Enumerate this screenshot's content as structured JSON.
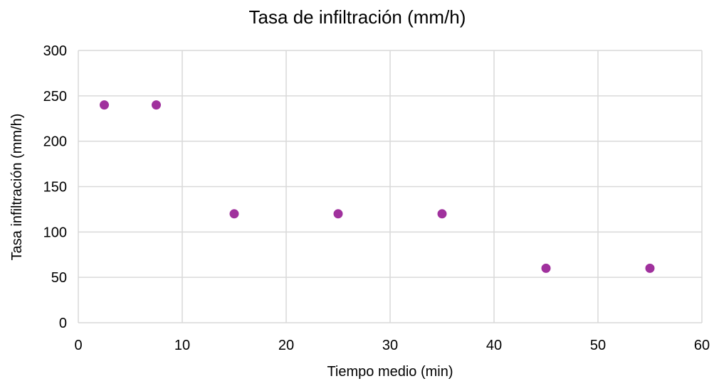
{
  "chart_data": {
    "type": "scatter",
    "title": "Tasa de infiltración  (mm/h)",
    "xlabel": "Tiempo medio (min)",
    "ylabel": "Tasa infiltración (mm/h)",
    "xlim": [
      0,
      60
    ],
    "ylim": [
      0,
      300
    ],
    "x_ticks": [
      0,
      10,
      20,
      30,
      40,
      50,
      60
    ],
    "y_ticks": [
      0,
      50,
      100,
      150,
      200,
      250,
      300
    ],
    "grid": true,
    "legend": "none",
    "series": [
      {
        "color": "#a0319d",
        "points": [
          {
            "x": 2.5,
            "y": 240
          },
          {
            "x": 7.5,
            "y": 240
          },
          {
            "x": 15,
            "y": 120
          },
          {
            "x": 25,
            "y": 120
          },
          {
            "x": 35,
            "y": 120
          },
          {
            "x": 45,
            "y": 60
          },
          {
            "x": 55,
            "y": 60
          }
        ]
      }
    ]
  }
}
